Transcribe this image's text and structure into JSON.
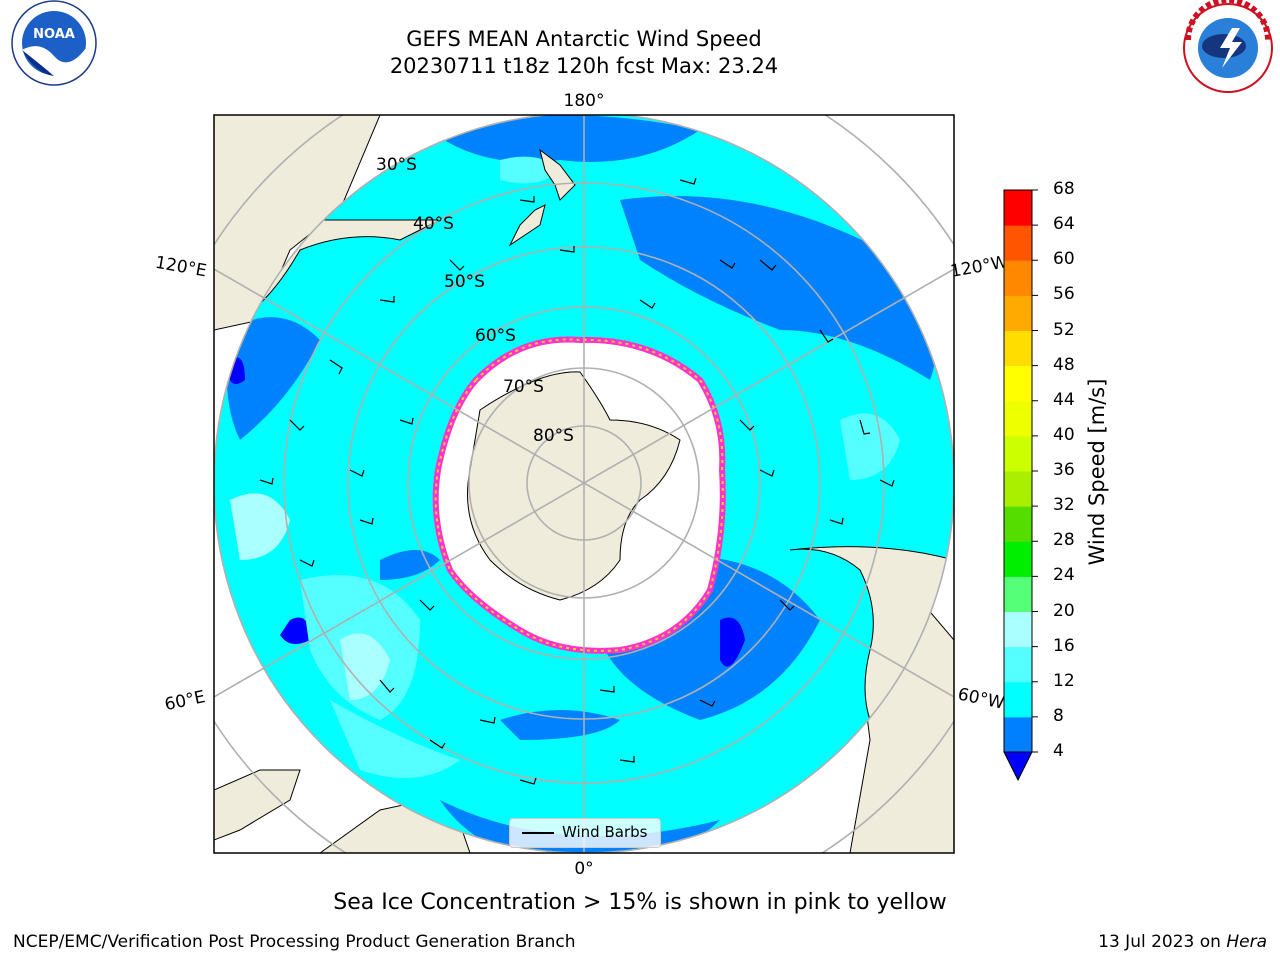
{
  "title": {
    "line1": "GEFS MEAN Antarctic Wind Speed",
    "line2": "20230711 t18z 120h fcst   Max: 23.24"
  },
  "logos": {
    "left": "noaa-logo",
    "right": "nws-logo"
  },
  "map": {
    "longitude_labels": {
      "top": "180°",
      "bottom": "0°",
      "left_upper": "120°E",
      "left_lower": "60°E",
      "right_upper": "120°W",
      "right_lower": "60°W"
    },
    "latitude_labels": [
      "30°S",
      "40°S",
      "50°S",
      "60°S",
      "70°S",
      "80°S"
    ],
    "legend_label": "Wind Barbs",
    "colors": {
      "land": "#efecdc",
      "ice": "#ffffff",
      "ocean_light": "#00ffff",
      "ocean_mid": "#55ffff",
      "ocean_dark": "#0082ff",
      "ocean_darkest": "#0000ff",
      "ice_edge": "#ff33cc"
    }
  },
  "colorbar": {
    "label": "Wind Speed [m/s]",
    "ticks": [
      "4",
      "8",
      "12",
      "16",
      "20",
      "24",
      "28",
      "32",
      "36",
      "40",
      "44",
      "48",
      "52",
      "56",
      "60",
      "64",
      "68"
    ],
    "colors": [
      "#0080ff",
      "#00ffff",
      "#55ffff",
      "#aaffff",
      "#55ff77",
      "#00ee00",
      "#55dd00",
      "#aaee00",
      "#ccff00",
      "#eeff00",
      "#ffff00",
      "#ffdd00",
      "#ffaa00",
      "#ff8800",
      "#ff5500",
      "#ff0000"
    ],
    "extend_color": "#0000ff"
  },
  "caption": "Sea Ice Concentration > 15% is shown in pink to yellow",
  "footer": {
    "left": "NCEP/EMC/Verification Post Processing Product Generation Branch",
    "right_date": "13 Jul 2023 on ",
    "right_machine": "Hera"
  }
}
